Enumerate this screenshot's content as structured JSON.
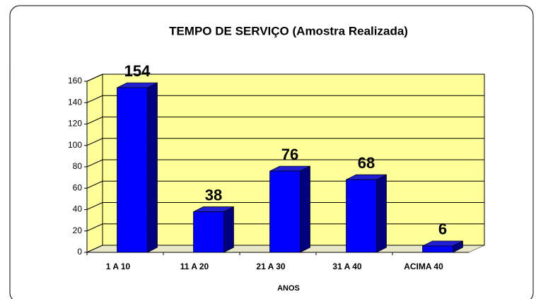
{
  "chart_data": {
    "type": "bar3d",
    "title": "TEMPO DE SERVIÇO (Amostra Realizada)",
    "x_label": "ANOS",
    "categories": [
      "1 A 10",
      "11 A 20",
      "21 A 30",
      "31 A 40",
      "ACIMA 40"
    ],
    "values": [
      154,
      38,
      76,
      68,
      6
    ],
    "color": "#0000ff",
    "ylim": [
      0,
      160
    ],
    "yticks": [
      0,
      20,
      40,
      60,
      80,
      100,
      120,
      140,
      160
    ],
    "grid": true
  }
}
